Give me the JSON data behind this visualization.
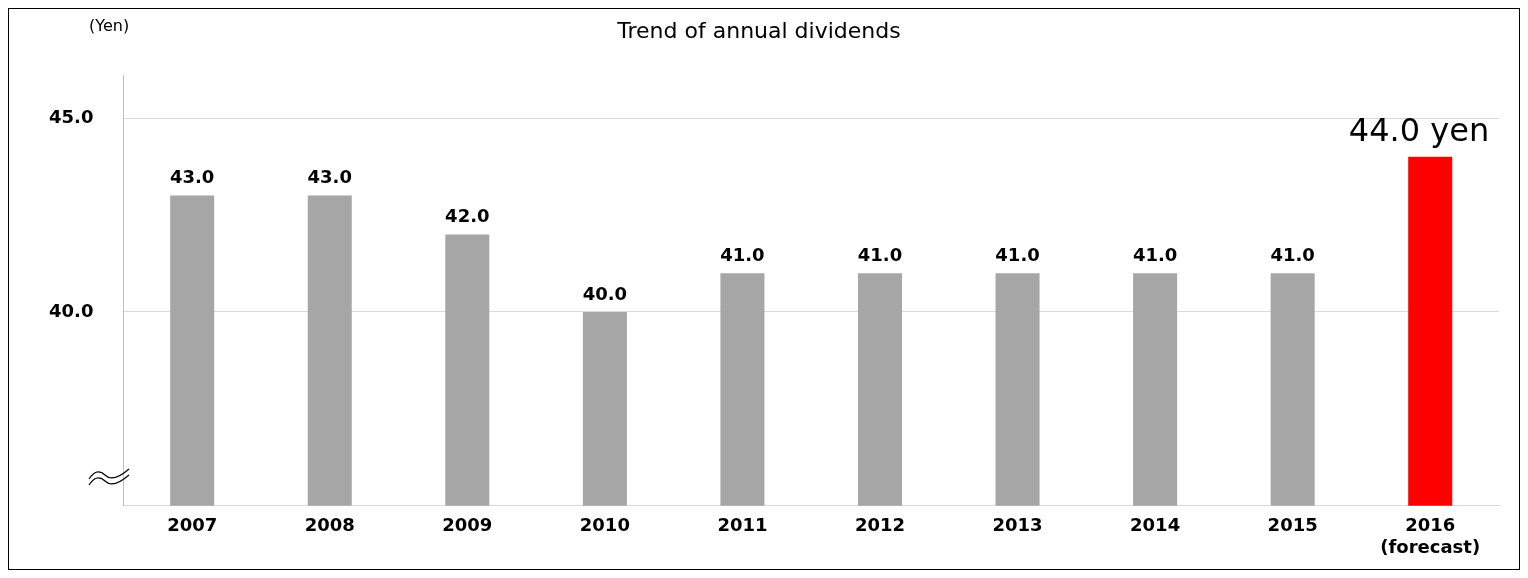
{
  "chart_data": {
    "type": "bar",
    "title": "Trend of annual dividends",
    "ylabel": "(Yen)",
    "categories": [
      "2007",
      "2008",
      "2009",
      "2010",
      "2011",
      "2012",
      "2013",
      "2014",
      "2015",
      "2016\n(forecast)"
    ],
    "values": [
      43,
      43,
      42,
      40,
      41,
      41,
      41,
      41,
      41,
      44
    ],
    "colors": [
      "#a6a6a6",
      "#a6a6a6",
      "#a6a6a6",
      "#a6a6a6",
      "#a6a6a6",
      "#a6a6a6",
      "#a6a6a6",
      "#a6a6a6",
      "#a6a6a6",
      "#ff0000"
    ],
    "value_labels": [
      "43.0",
      "43.0",
      "42.0",
      "40.0",
      "41.0",
      "41.0",
      "41.0",
      "41.0",
      "41.0",
      "44.0 yen"
    ],
    "ylim": [
      35,
      46.1
    ],
    "yticks": [
      {
        "value": 40,
        "label": "40.0"
      },
      {
        "value": 45,
        "label": "45.0"
      }
    ],
    "grid": "y",
    "legend": false
  }
}
